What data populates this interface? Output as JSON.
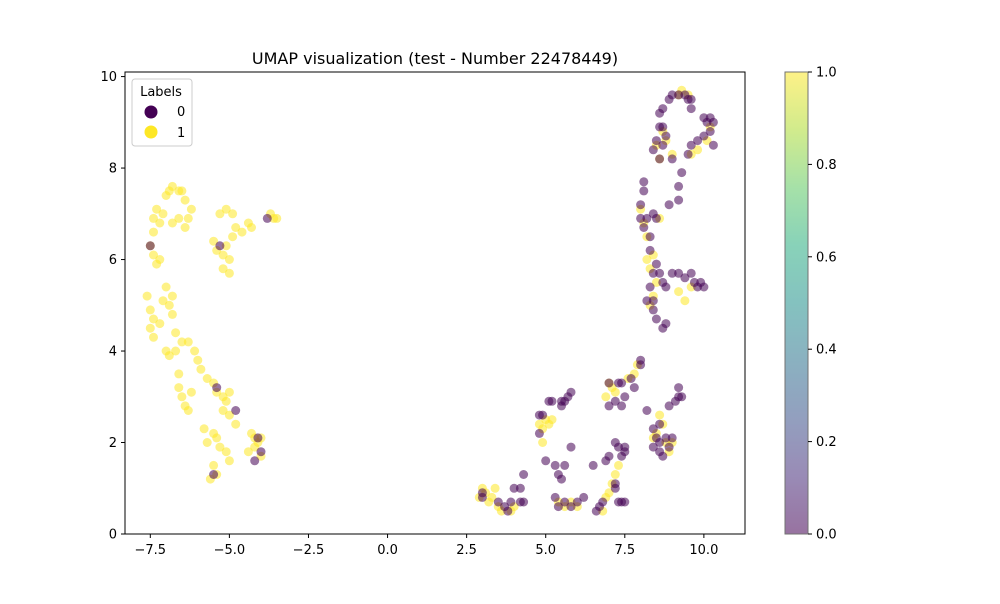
{
  "chart_data": {
    "type": "scatter",
    "title": "UMAP visualization (test - Number 22478449)",
    "xlabel": "",
    "ylabel": "",
    "xlim": [
      -8.3,
      11.3
    ],
    "ylim": [
      0,
      10.1
    ],
    "xticks": [
      -7.5,
      -5.0,
      -2.5,
      0.0,
      2.5,
      5.0,
      7.5,
      10.0
    ],
    "xtick_labels": [
      "−7.5",
      "−5.0",
      "−2.5",
      "0.0",
      "2.5",
      "5.0",
      "7.5",
      "10.0"
    ],
    "yticks": [
      0,
      2,
      4,
      6,
      8,
      10
    ],
    "ytick_labels": [
      "0",
      "2",
      "4",
      "6",
      "8",
      "10"
    ],
    "grid": false,
    "legend": {
      "title": "Labels",
      "placement": "upper-left",
      "entries": [
        "0",
        "1"
      ]
    },
    "colorbar": {
      "range": [
        0.0,
        1.0
      ],
      "ticks": [
        0.0,
        0.2,
        0.4,
        0.6,
        0.8,
        1.0
      ],
      "tick_labels": [
        "0.0",
        "0.2",
        "0.4",
        "0.6",
        "0.8",
        "1.0"
      ],
      "colormap": "viridis"
    },
    "colors": {
      "label_0": "#440154",
      "label_1": "#fde725"
    },
    "marker_alpha": 0.55,
    "series": [
      {
        "name": "1",
        "points": [
          [
            -7.5,
            6.3
          ],
          [
            -7.4,
            6.6
          ],
          [
            -7.4,
            6.9
          ],
          [
            -7.3,
            7.1
          ],
          [
            -7.2,
            6.8
          ],
          [
            -7.1,
            7.0
          ],
          [
            -7.0,
            7.4
          ],
          [
            -6.9,
            7.5
          ],
          [
            -6.8,
            7.6
          ],
          [
            -6.6,
            7.5
          ],
          [
            -6.5,
            7.5
          ],
          [
            -6.6,
            6.9
          ],
          [
            -6.8,
            6.8
          ],
          [
            -6.4,
            6.7
          ],
          [
            -6.3,
            6.9
          ],
          [
            -6.2,
            7.1
          ],
          [
            -6.4,
            7.3
          ],
          [
            -7.3,
            5.9
          ],
          [
            -7.4,
            6.1
          ],
          [
            -7.2,
            6.0
          ],
          [
            -5.5,
            6.4
          ],
          [
            -5.4,
            6.2
          ],
          [
            -5.2,
            6.1
          ],
          [
            -5.0,
            6.0
          ],
          [
            -5.1,
            6.3
          ],
          [
            -4.9,
            6.5
          ],
          [
            -4.8,
            6.7
          ],
          [
            -4.6,
            6.6
          ],
          [
            -4.4,
            6.8
          ],
          [
            -4.3,
            6.7
          ],
          [
            -5.2,
            5.8
          ],
          [
            -5.0,
            5.7
          ],
          [
            -5.3,
            7.0
          ],
          [
            -5.1,
            7.1
          ],
          [
            -4.9,
            7.0
          ],
          [
            -3.6,
            6.9
          ],
          [
            -3.5,
            6.9
          ],
          [
            -3.7,
            7.0
          ],
          [
            -7.6,
            5.2
          ],
          [
            -7.5,
            4.9
          ],
          [
            -7.4,
            4.7
          ],
          [
            -7.5,
            4.5
          ],
          [
            -7.4,
            4.3
          ],
          [
            -7.2,
            4.6
          ],
          [
            -7.1,
            5.1
          ],
          [
            -6.9,
            5.0
          ],
          [
            -6.8,
            5.2
          ],
          [
            -7.0,
            5.4
          ],
          [
            -6.8,
            4.8
          ],
          [
            -6.7,
            4.4
          ],
          [
            -7.0,
            4.0
          ],
          [
            -6.9,
            3.9
          ],
          [
            -6.7,
            4.0
          ],
          [
            -6.5,
            4.2
          ],
          [
            -6.3,
            4.2
          ],
          [
            -6.1,
            4.0
          ],
          [
            -6.0,
            3.8
          ],
          [
            -5.9,
            3.6
          ],
          [
            -5.7,
            3.4
          ],
          [
            -5.5,
            3.3
          ],
          [
            -6.6,
            3.2
          ],
          [
            -6.5,
            3.0
          ],
          [
            -6.4,
            2.8
          ],
          [
            -6.3,
            2.7
          ],
          [
            -6.2,
            3.1
          ],
          [
            -6.6,
            3.5
          ],
          [
            -5.4,
            3.1
          ],
          [
            -5.2,
            3.0
          ],
          [
            -5.0,
            3.1
          ],
          [
            -5.1,
            2.9
          ],
          [
            -5.2,
            2.7
          ],
          [
            -5.0,
            2.6
          ],
          [
            -4.8,
            2.4
          ],
          [
            -5.8,
            2.3
          ],
          [
            -5.7,
            2.0
          ],
          [
            -5.5,
            2.2
          ],
          [
            -5.4,
            2.1
          ],
          [
            -5.3,
            1.9
          ],
          [
            -5.1,
            1.8
          ],
          [
            -5.0,
            1.6
          ],
          [
            -4.3,
            2.2
          ],
          [
            -4.2,
            2.1
          ],
          [
            -4.1,
            2.0
          ],
          [
            -4.0,
            2.1
          ],
          [
            -4.2,
            1.9
          ],
          [
            -4.4,
            1.8
          ],
          [
            -5.5,
            1.5
          ],
          [
            -5.4,
            1.3
          ],
          [
            -5.6,
            1.2
          ],
          [
            -4.0,
            1.7
          ],
          [
            2.9,
            0.8
          ],
          [
            3.0,
            1.0
          ],
          [
            3.1,
            0.9
          ],
          [
            3.2,
            0.7
          ],
          [
            3.3,
            0.8
          ],
          [
            3.4,
            1.0
          ],
          [
            3.5,
            0.6
          ],
          [
            3.6,
            0.5
          ],
          [
            3.9,
            0.5
          ],
          [
            4.0,
            0.6
          ],
          [
            4.8,
            2.4
          ],
          [
            4.9,
            2.3
          ],
          [
            5.0,
            2.5
          ],
          [
            5.2,
            2.5
          ],
          [
            5.1,
            2.4
          ],
          [
            4.9,
            2.0
          ],
          [
            5.4,
            0.7
          ],
          [
            5.6,
            0.6
          ],
          [
            5.8,
            0.7
          ],
          [
            6.0,
            0.6
          ],
          [
            7.0,
            3.3
          ],
          [
            7.1,
            3.2
          ],
          [
            7.2,
            3.1
          ],
          [
            6.9,
            3.0
          ],
          [
            7.3,
            1.5
          ],
          [
            7.2,
            1.3
          ],
          [
            7.1,
            1.1
          ],
          [
            7.0,
            0.9
          ],
          [
            6.9,
            0.8
          ],
          [
            6.8,
            0.5
          ],
          [
            7.6,
            3.4
          ],
          [
            7.8,
            3.5
          ],
          [
            7.9,
            3.7
          ],
          [
            8.4,
            2.1
          ],
          [
            8.5,
            2.2
          ],
          [
            8.6,
            2.6
          ],
          [
            8.7,
            2.4
          ],
          [
            8.8,
            2.0
          ],
          [
            8.9,
            1.8
          ],
          [
            9.0,
            2.0
          ],
          [
            8.3,
            5.0
          ],
          [
            8.4,
            5.2
          ],
          [
            8.5,
            5.5
          ],
          [
            8.3,
            5.8
          ],
          [
            8.2,
            6.0
          ],
          [
            9.2,
            5.3
          ],
          [
            9.4,
            5.1
          ],
          [
            9.6,
            5.4
          ],
          [
            8.5,
            8.5
          ],
          [
            8.7,
            8.8
          ],
          [
            8.6,
            8.2
          ],
          [
            8.8,
            8.6
          ],
          [
            9.0,
            8.3
          ],
          [
            9.6,
            8.3
          ],
          [
            9.8,
            8.4
          ],
          [
            10.2,
            8.9
          ],
          [
            10.1,
            8.6
          ],
          [
            9.5,
            9.6
          ],
          [
            9.3,
            9.7
          ],
          [
            9.2,
            9.6
          ],
          [
            8.1,
            6.8
          ],
          [
            8.2,
            6.5
          ],
          [
            8.0,
            7.1
          ],
          [
            8.6,
            6.9
          ],
          [
            8.4,
            6.1
          ]
        ]
      },
      {
        "name": "0",
        "points": [
          [
            -7.5,
            6.3
          ],
          [
            -5.3,
            6.3
          ],
          [
            -3.8,
            6.9
          ],
          [
            -5.4,
            3.2
          ],
          [
            -4.8,
            2.7
          ],
          [
            -4.1,
            2.1
          ],
          [
            -4.2,
            1.6
          ],
          [
            -4.0,
            1.8
          ],
          [
            -5.5,
            1.3
          ],
          [
            3.0,
            0.9
          ],
          [
            3.0,
            0.8
          ],
          [
            3.5,
            0.7
          ],
          [
            3.7,
            0.6
          ],
          [
            3.8,
            0.5
          ],
          [
            3.9,
            0.7
          ],
          [
            4.0,
            1.0
          ],
          [
            4.2,
            1.0
          ],
          [
            4.3,
            0.7
          ],
          [
            4.3,
            1.3
          ],
          [
            4.2,
            0.7
          ],
          [
            4.8,
            2.6
          ],
          [
            4.9,
            2.6
          ],
          [
            4.8,
            2.2
          ],
          [
            5.1,
            2.9
          ],
          [
            5.2,
            2.9
          ],
          [
            5.5,
            2.8
          ],
          [
            5.6,
            2.9
          ],
          [
            5.7,
            3.0
          ],
          [
            5.8,
            3.1
          ],
          [
            5.5,
            2.9
          ],
          [
            5.0,
            1.6
          ],
          [
            5.3,
            1.5
          ],
          [
            5.6,
            1.5
          ],
          [
            5.4,
            1.3
          ],
          [
            5.8,
            1.9
          ],
          [
            5.5,
            1.2
          ],
          [
            5.3,
            0.8
          ],
          [
            5.4,
            0.6
          ],
          [
            5.6,
            0.7
          ],
          [
            5.8,
            0.6
          ],
          [
            6.0,
            0.7
          ],
          [
            6.2,
            0.8
          ],
          [
            6.5,
            1.5
          ],
          [
            6.6,
            0.5
          ],
          [
            6.7,
            0.6
          ],
          [
            6.8,
            0.7
          ],
          [
            6.9,
            1.6
          ],
          [
            7.0,
            1.7
          ],
          [
            7.2,
            1.0
          ],
          [
            7.3,
            0.7
          ],
          [
            7.4,
            0.7
          ],
          [
            7.5,
            0.7
          ],
          [
            7.2,
            1.1
          ],
          [
            7.2,
            2.0
          ],
          [
            7.3,
            1.9
          ],
          [
            7.4,
            1.7
          ],
          [
            7.5,
            1.8
          ],
          [
            7.5,
            1.9
          ],
          [
            7.2,
            2.9
          ],
          [
            7.0,
            2.8
          ],
          [
            7.0,
            3.3
          ],
          [
            7.3,
            3.3
          ],
          [
            7.4,
            3.3
          ],
          [
            7.7,
            3.4
          ],
          [
            7.8,
            3.2
          ],
          [
            7.5,
            3.0
          ],
          [
            7.4,
            2.8
          ],
          [
            8.0,
            3.7
          ],
          [
            8.0,
            3.8
          ],
          [
            8.2,
            2.7
          ],
          [
            8.4,
            2.3
          ],
          [
            8.5,
            2.1
          ],
          [
            8.6,
            2.0
          ],
          [
            8.8,
            2.1
          ],
          [
            8.9,
            1.9
          ],
          [
            8.7,
            1.7
          ],
          [
            8.6,
            1.8
          ],
          [
            9.0,
            2.1
          ],
          [
            9.1,
            2.9
          ],
          [
            9.2,
            3.0
          ],
          [
            9.3,
            3.0
          ],
          [
            9.2,
            3.2
          ],
          [
            8.9,
            2.8
          ],
          [
            8.6,
            2.4
          ],
          [
            8.4,
            1.9
          ],
          [
            8.2,
            5.1
          ],
          [
            8.3,
            5.4
          ],
          [
            8.4,
            5.7
          ],
          [
            8.5,
            5.9
          ],
          [
            8.6,
            5.7
          ],
          [
            8.7,
            5.5
          ],
          [
            8.8,
            5.4
          ],
          [
            9.0,
            5.7
          ],
          [
            9.2,
            5.7
          ],
          [
            9.4,
            5.6
          ],
          [
            9.6,
            5.7
          ],
          [
            9.7,
            5.5
          ],
          [
            9.8,
            5.4
          ],
          [
            9.9,
            5.5
          ],
          [
            10.0,
            5.4
          ],
          [
            8.4,
            4.9
          ],
          [
            8.5,
            4.7
          ],
          [
            8.7,
            4.5
          ],
          [
            8.8,
            4.6
          ],
          [
            8.4,
            5.1
          ],
          [
            8.3,
            6.2
          ],
          [
            8.3,
            6.5
          ],
          [
            8.1,
            6.7
          ],
          [
            8.0,
            6.9
          ],
          [
            8.2,
            6.9
          ],
          [
            8.4,
            7.0
          ],
          [
            8.5,
            6.9
          ],
          [
            8.0,
            7.2
          ],
          [
            8.1,
            7.5
          ],
          [
            8.1,
            7.7
          ],
          [
            8.6,
            8.2
          ],
          [
            8.7,
            8.5
          ],
          [
            8.8,
            8.7
          ],
          [
            8.7,
            8.9
          ],
          [
            9.0,
            8.2
          ],
          [
            9.2,
            7.6
          ],
          [
            9.3,
            7.9
          ],
          [
            8.9,
            7.2
          ],
          [
            9.2,
            7.3
          ],
          [
            9.5,
            8.3
          ],
          [
            9.6,
            8.5
          ],
          [
            9.8,
            8.6
          ],
          [
            10.0,
            8.7
          ],
          [
            10.3,
            8.5
          ],
          [
            10.2,
            8.8
          ],
          [
            10.1,
            9.0
          ],
          [
            10.2,
            9.1
          ],
          [
            10.3,
            9.0
          ],
          [
            10.0,
            9.1
          ],
          [
            9.6,
            9.3
          ],
          [
            9.4,
            9.6
          ],
          [
            9.2,
            9.6
          ],
          [
            9.0,
            9.6
          ],
          [
            8.9,
            9.5
          ],
          [
            8.7,
            9.3
          ],
          [
            8.6,
            9.2
          ],
          [
            8.6,
            8.9
          ],
          [
            8.5,
            8.6
          ],
          [
            8.4,
            8.4
          ],
          [
            9.5,
            9.5
          ],
          [
            9.6,
            9.5
          ]
        ]
      }
    ]
  }
}
